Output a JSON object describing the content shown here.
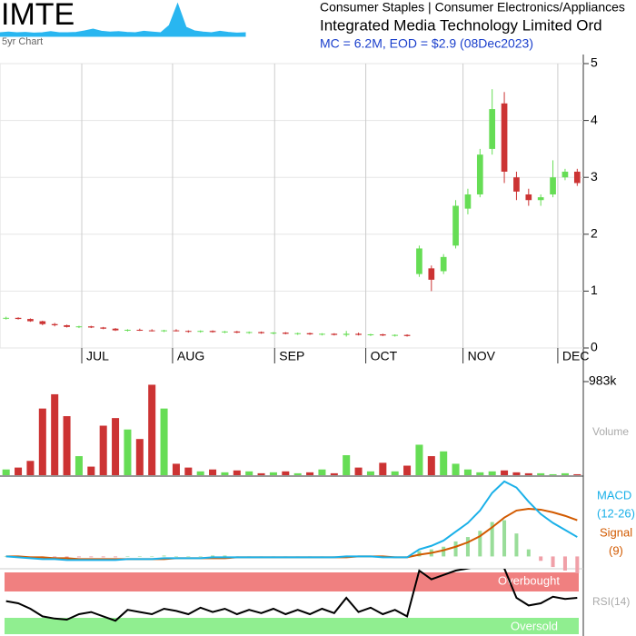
{
  "chart_data": {
    "type": "candlestick",
    "ticker": "IMTE",
    "sector": "Consumer Staples | Consumer Electronics/Appliances",
    "name": "Integrated Media Technology Limited Ord",
    "summary": "MC = 6.2M, EOD = $2.9 (08Dec2023)",
    "sparkline_label": "5yr Chart",
    "sparkline": {
      "color": "#29b6f0",
      "ylim": [
        0,
        10
      ],
      "values": [
        1,
        1.2,
        1,
        1.1,
        0.9,
        1,
        1.3,
        1,
        1,
        1.1,
        1.5,
        2,
        1.4,
        1.2,
        1.3,
        1.1,
        1,
        1.4,
        1.2,
        1,
        3,
        9,
        2.5,
        1.5,
        1.2,
        1,
        1.4,
        1.1,
        0.9,
        1
      ]
    },
    "up_color": "#66dd55",
    "down_color": "#cc3333",
    "ylim": [
      0,
      5
    ],
    "yticks": [
      0,
      1,
      2,
      3,
      4,
      5
    ],
    "grid": true,
    "xticks": [
      {
        "value": 6.23,
        "label": "JUL"
      },
      {
        "value": 13.7,
        "label": "AUG"
      },
      {
        "value": 22.1,
        "label": "SEP"
      },
      {
        "value": 29.6,
        "label": "OCT"
      },
      {
        "value": 37.6,
        "label": "NOV"
      },
      {
        "value": 45.4,
        "label": "DEC"
      }
    ],
    "open": [
      0.52,
      0.53,
      0.51,
      0.47,
      0.42,
      0.4,
      0.37,
      0.38,
      0.36,
      0.34,
      0.31,
      0.32,
      0.31,
      0.3,
      0.31,
      0.3,
      0.29,
      0.3,
      0.28,
      0.29,
      0.27,
      0.28,
      0.26,
      0.27,
      0.25,
      0.26,
      0.24,
      0.25,
      0.23,
      0.25,
      0.23,
      0.24,
      0.22,
      0.23,
      1.3,
      1.4,
      1.35,
      1.8,
      2.45,
      2.7,
      3.5,
      4.3,
      3.0,
      2.7,
      2.6,
      2.7,
      3.0,
      3.1
    ],
    "high": [
      0.55,
      0.54,
      0.52,
      0.48,
      0.44,
      0.41,
      0.39,
      0.39,
      0.37,
      0.35,
      0.33,
      0.34,
      0.33,
      0.32,
      0.33,
      0.31,
      0.31,
      0.31,
      0.3,
      0.3,
      0.29,
      0.29,
      0.28,
      0.28,
      0.27,
      0.27,
      0.26,
      0.26,
      0.3,
      0.27,
      0.25,
      0.25,
      0.24,
      0.24,
      1.8,
      1.45,
      1.65,
      2.6,
      2.8,
      3.5,
      4.55,
      4.5,
      3.1,
      2.8,
      2.7,
      3.3,
      3.15,
      3.15
    ],
    "low": [
      0.5,
      0.5,
      0.46,
      0.4,
      0.38,
      0.36,
      0.35,
      0.35,
      0.33,
      0.3,
      0.29,
      0.3,
      0.29,
      0.28,
      0.29,
      0.27,
      0.27,
      0.27,
      0.26,
      0.26,
      0.25,
      0.25,
      0.24,
      0.24,
      0.23,
      0.23,
      0.22,
      0.22,
      0.2,
      0.22,
      0.21,
      0.21,
      0.2,
      0.2,
      1.25,
      1.0,
      1.3,
      1.75,
      2.35,
      2.65,
      3.4,
      2.9,
      2.6,
      2.5,
      2.5,
      2.65,
      2.95,
      2.85
    ],
    "close": [
      0.53,
      0.51,
      0.47,
      0.42,
      0.4,
      0.37,
      0.38,
      0.36,
      0.34,
      0.31,
      0.32,
      0.31,
      0.3,
      0.31,
      0.3,
      0.29,
      0.3,
      0.28,
      0.29,
      0.27,
      0.28,
      0.26,
      0.27,
      0.25,
      0.26,
      0.24,
      0.25,
      0.23,
      0.25,
      0.23,
      0.24,
      0.22,
      0.23,
      0.21,
      1.75,
      1.2,
      1.6,
      2.5,
      2.7,
      3.4,
      4.2,
      3.1,
      2.75,
      2.6,
      2.65,
      3.0,
      3.1,
      2.9
    ],
    "volume": {
      "label": "Volume",
      "ylim": [
        0,
        983000
      ],
      "yticks": [
        {
          "value": 983000,
          "label": "983k"
        }
      ],
      "values": [
        60000,
        80000,
        150000,
        700000,
        850000,
        620000,
        200000,
        90000,
        520000,
        600000,
        480000,
        380000,
        950000,
        700000,
        120000,
        80000,
        40000,
        60000,
        30000,
        50000,
        40000,
        20000,
        30000,
        40000,
        20000,
        30000,
        60000,
        20000,
        210000,
        80000,
        40000,
        130000,
        40000,
        100000,
        320000,
        200000,
        250000,
        120000,
        60000,
        30000,
        40000,
        50000,
        30000,
        20000,
        20000,
        10000,
        20000,
        10000
      ]
    },
    "macd": {
      "label": "MACD",
      "period_label": "(12-26)",
      "signal_label": "Signal",
      "signal_period_label": "(9)",
      "ylim": [
        -0.15,
        0.9
      ],
      "macd_color": "#1ab0e8",
      "signal_color": "#d25a00",
      "hist_up_color": "#99dd99",
      "hist_down_color": "#f0a0a8",
      "macd_values": [
        0,
        -0.01,
        -0.02,
        -0.03,
        -0.03,
        -0.04,
        -0.04,
        -0.04,
        -0.04,
        -0.04,
        -0.03,
        -0.03,
        -0.03,
        -0.02,
        -0.02,
        -0.02,
        -0.02,
        -0.01,
        -0.01,
        -0.01,
        -0.01,
        -0.01,
        -0.01,
        -0.01,
        -0.01,
        -0.01,
        -0.01,
        -0.01,
        0,
        0,
        0,
        -0.01,
        -0.01,
        -0.01,
        0.08,
        0.12,
        0.18,
        0.28,
        0.38,
        0.52,
        0.72,
        0.85,
        0.78,
        0.62,
        0.48,
        0.38,
        0.3,
        0.22
      ],
      "signal_values": [
        0,
        0,
        -0.01,
        -0.01,
        -0.02,
        -0.02,
        -0.03,
        -0.03,
        -0.03,
        -0.03,
        -0.03,
        -0.03,
        -0.03,
        -0.03,
        -0.02,
        -0.02,
        -0.02,
        -0.02,
        -0.02,
        -0.01,
        -0.01,
        -0.01,
        -0.01,
        -0.01,
        -0.01,
        -0.01,
        -0.01,
        -0.01,
        -0.01,
        0,
        0,
        0,
        -0.01,
        -0.01,
        0.02,
        0.04,
        0.07,
        0.11,
        0.16,
        0.23,
        0.33,
        0.44,
        0.52,
        0.54,
        0.53,
        0.5,
        0.46,
        0.41
      ],
      "histogram_values": [
        0,
        -0.01,
        -0.01,
        -0.02,
        -0.01,
        -0.02,
        -0.01,
        -0.01,
        -0.01,
        -0.01,
        0,
        0,
        0,
        0.01,
        0,
        0,
        0,
        0.01,
        0.01,
        0,
        0,
        0,
        0,
        0,
        0,
        0,
        0,
        0,
        0.01,
        0,
        0,
        -0.01,
        0,
        0,
        0.06,
        0.08,
        0.11,
        0.17,
        0.22,
        0.29,
        0.39,
        0.41,
        0.26,
        0.08,
        -0.05,
        -0.12,
        -0.16,
        -0.19
      ]
    },
    "rsi": {
      "label": "RSI(14)",
      "overbought_label": "Overbought",
      "oversold_label": "Oversold",
      "ylim": [
        0,
        100
      ],
      "color": "#000000",
      "values": [
        52,
        50,
        45,
        38,
        36,
        35,
        40,
        42,
        38,
        34,
        44,
        42,
        40,
        45,
        43,
        40,
        46,
        42,
        45,
        40,
        44,
        41,
        45,
        40,
        44,
        40,
        45,
        41,
        55,
        42,
        46,
        40,
        44,
        38,
        80,
        72,
        76,
        80,
        82,
        84,
        86,
        82,
        55,
        48,
        50,
        56,
        54,
        55
      ]
    }
  }
}
